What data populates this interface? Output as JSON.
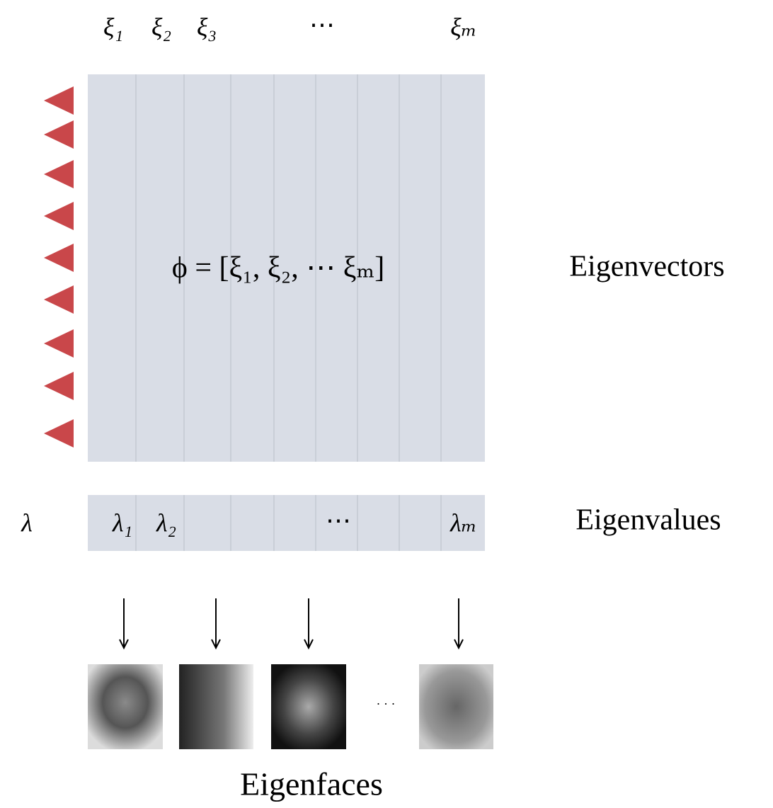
{
  "header": {
    "columns": [
      "ξ₁",
      "ξ₂",
      "ξ₃",
      "⋯",
      "ξₘ"
    ]
  },
  "matrix": {
    "formula": "ϕ = [ξ₁, ξ₂, ⋯ ξₘ]",
    "label": "Eigenvectors"
  },
  "eigenvalues": {
    "symbol": "λ",
    "cells": [
      "λ₁",
      "λ₂",
      "⋯",
      "λₘ"
    ],
    "label": "Eigenvalues"
  },
  "faces": {
    "ellipsis": "· · ·",
    "label": "Eigenfaces"
  }
}
